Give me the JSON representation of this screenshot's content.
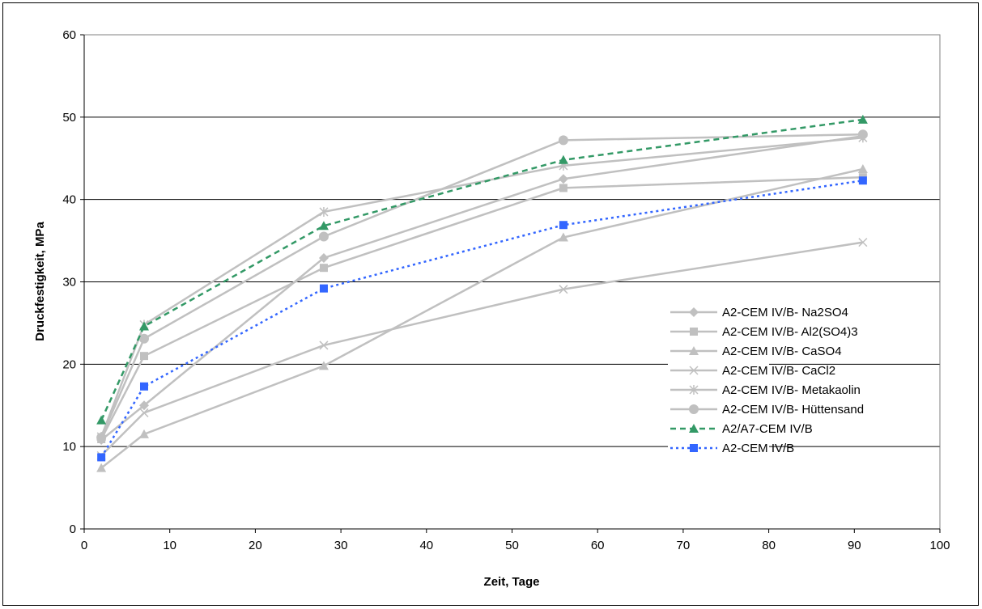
{
  "chart_data": {
    "type": "line",
    "title": "",
    "xlabel": "Zeit, Tage",
    "ylabel": "Druckfestigkeit, MPa",
    "xlim": [
      0,
      100
    ],
    "ylim": [
      0,
      60
    ],
    "x_ticks": [
      0,
      10,
      20,
      30,
      40,
      50,
      60,
      70,
      80,
      90,
      100
    ],
    "y_ticks": [
      0,
      10,
      20,
      30,
      40,
      50,
      60
    ],
    "grid": "horizontal",
    "legend_position": "right",
    "series": [
      {
        "name": "A2-CEM IV/B- Na2SO4",
        "color": "#c0c0c0",
        "marker": "diamond",
        "dash": "solid",
        "x": [
          2,
          7,
          28,
          56,
          91
        ],
        "y": [
          10.8,
          15.0,
          32.9,
          42.5,
          47.7
        ]
      },
      {
        "name": "A2-CEM IV/B- Al2(SO4)3",
        "color": "#c0c0c0",
        "marker": "square",
        "dash": "solid",
        "x": [
          2,
          7,
          28,
          56,
          91
        ],
        "y": [
          10.9,
          21.0,
          31.7,
          41.4,
          42.7
        ]
      },
      {
        "name": "A2-CEM IV/B- CaSO4",
        "color": "#c0c0c0",
        "marker": "triangle",
        "dash": "solid",
        "x": [
          2,
          7,
          28,
          56,
          91
        ],
        "y": [
          7.4,
          11.5,
          19.8,
          35.4,
          43.7
        ]
      },
      {
        "name": "A2-CEM IV/B- CaCl2",
        "color": "#c0c0c0",
        "marker": "x",
        "dash": "solid",
        "x": [
          2,
          7,
          28,
          56,
          91
        ],
        "y": [
          8.9,
          14.1,
          22.3,
          29.1,
          34.8
        ]
      },
      {
        "name": "A2-CEM IV/B- Metakaolin",
        "color": "#c0c0c0",
        "marker": "star",
        "dash": "solid",
        "x": [
          2,
          7,
          28,
          56,
          91
        ],
        "y": [
          11.2,
          24.8,
          38.5,
          44.1,
          47.5
        ]
      },
      {
        "name": "A2-CEM IV/B- Hüttensand",
        "color": "#c0c0c0",
        "marker": "circle",
        "dash": "solid",
        "x": [
          2,
          7,
          28,
          56,
          91
        ],
        "y": [
          11.1,
          23.1,
          35.5,
          47.2,
          47.9
        ]
      },
      {
        "name": "A2/A7-CEM IV/B",
        "color": "#339966",
        "marker": "triangle",
        "dash": "dashed",
        "x": [
          2,
          7,
          28,
          56,
          91
        ],
        "y": [
          13.2,
          24.6,
          36.8,
          44.8,
          49.7
        ]
      },
      {
        "name": "A2-CEM IV/B",
        "color": "#3366ff",
        "marker": "square",
        "dash": "dotted",
        "x": [
          2,
          7,
          28,
          56,
          91
        ],
        "y": [
          8.7,
          17.3,
          29.2,
          36.9,
          42.3
        ]
      }
    ]
  }
}
